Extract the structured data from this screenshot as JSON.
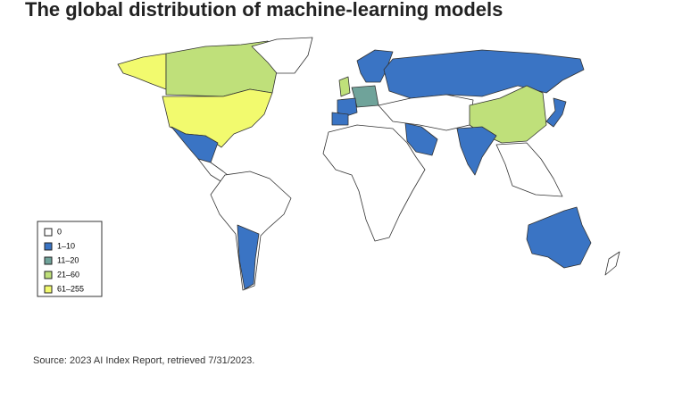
{
  "header": {
    "title": "The global distribution of machine-learning models"
  },
  "legend": {
    "items": [
      {
        "label": "0",
        "color": "#ffffff"
      },
      {
        "label": "1–10",
        "color": "#3a74c4"
      },
      {
        "label": "11–20",
        "color": "#6fa39a"
      },
      {
        "label": "21–60",
        "color": "#bfe07a"
      },
      {
        "label": "61–255",
        "color": "#f2fa6e"
      }
    ]
  },
  "footer": {
    "source": "Source: 2023 AI Index Report, retrieved 7/31/2023."
  }
}
